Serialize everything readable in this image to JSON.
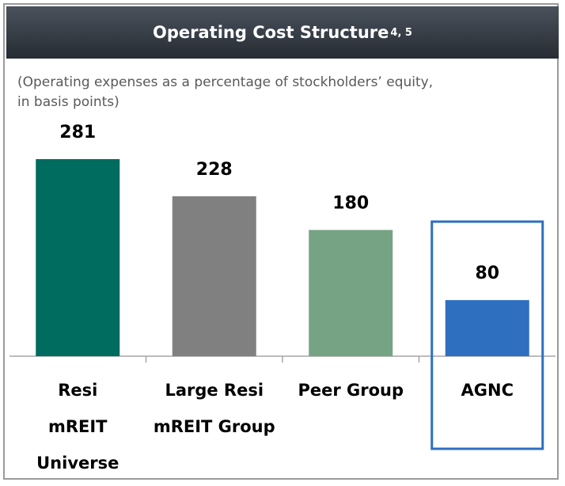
{
  "chart_data": {
    "type": "bar",
    "title": "Operating Cost Structure",
    "title_superscript": "4, 5",
    "subtitle": "(Operating expenses as a percentage of stockholders’ equity, in basis points)",
    "categories": [
      "Resi mREIT Universe",
      "Large Resi mREIT Group",
      "Peer Group",
      "AGNC"
    ],
    "values": [
      281,
      228,
      180,
      80
    ],
    "colors": [
      "#006b5f",
      "#808080",
      "#76a383",
      "#2e6fc0"
    ],
    "highlight": "AGNC"
  }
}
